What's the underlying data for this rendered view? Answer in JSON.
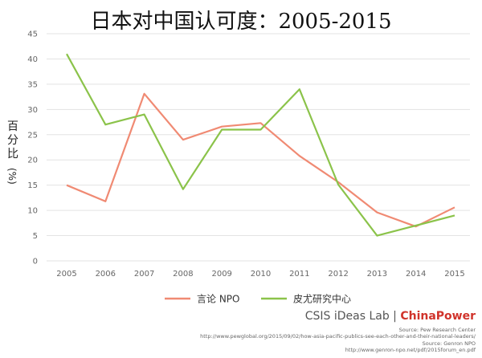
{
  "title": "日本对中国认可度：2005-2015",
  "ylabel": "百分比",
  "ylabel_unit": "(%)",
  "brand": {
    "left": "CSIS iDeas Lab",
    "sep": " | ",
    "right": "ChinaPower"
  },
  "sources": [
    "Source: Pew Research Center",
    "http://www.pewglobal.org/2015/09/02/how-asia-pacific-publics-see-each-other-and-their-national-leaders/",
    "Source: Genron NPO",
    "http://www.genron-npo.net/pdf/2015forum_en.pdf"
  ],
  "colors": {
    "series1": "#f08a73",
    "series2": "#8bc34a",
    "grid": "#e3e3e3"
  },
  "chart_data": {
    "type": "line",
    "x": [
      "2005",
      "2006",
      "2007",
      "2008",
      "2009",
      "2010",
      "2011",
      "2012",
      "2013",
      "2014",
      "2015"
    ],
    "ylim": [
      0,
      45
    ],
    "yticks": [
      0,
      5,
      10,
      15,
      20,
      25,
      30,
      35,
      40,
      45
    ],
    "grid": true,
    "legend_position": "bottom",
    "series": [
      {
        "name": "言论 NPO",
        "values": [
          15,
          11.8,
          33.1,
          24,
          26.6,
          27.3,
          20.8,
          15.6,
          9.6,
          6.8,
          10.6
        ]
      },
      {
        "name": "皮尤研究中心",
        "values": [
          41,
          27,
          29,
          14.2,
          26,
          26,
          34,
          15.1,
          5,
          7,
          9
        ]
      }
    ]
  }
}
